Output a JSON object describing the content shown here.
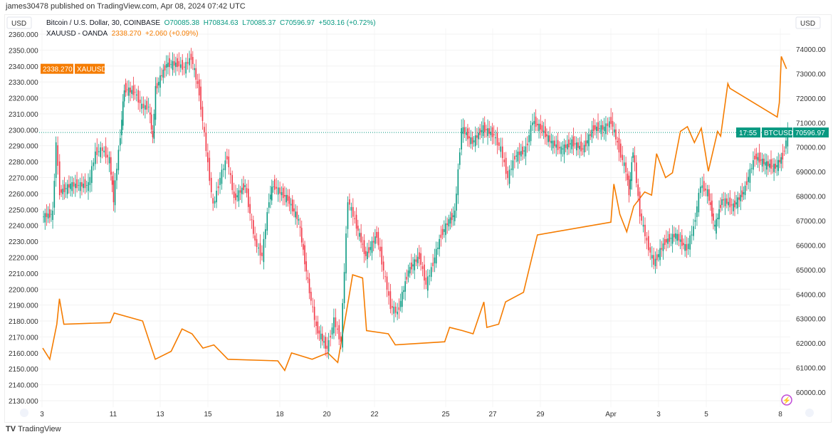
{
  "header": {
    "published": "james30478 published on TradingView.com, Apr 08, 2024 07:42 UTC"
  },
  "legend": {
    "btc_name": "Bitcoin / U.S. Dollar, 30, COINBASE",
    "btc_o": "O70085.38",
    "btc_h": "H70834.63",
    "btc_l": "L70085.37",
    "btc_c": "C70596.97",
    "btc_chg": "+503.16 (+0.72%)",
    "gold_name": "XAUUSD - OANDA",
    "gold_price": "2338.270",
    "gold_chg": "+2.060 (+0.09%)"
  },
  "footer": {
    "logo": "TradingView"
  },
  "colors": {
    "gold": "#f57c00",
    "up": "#089981",
    "down": "#f23645"
  },
  "chart_data": {
    "type": "line",
    "left_axis": {
      "unit": "USD",
      "range": [
        2130,
        2360
      ],
      "ticks": [
        2130,
        2140,
        2150,
        2160,
        2170,
        2180,
        2190,
        2200,
        2210,
        2220,
        2230,
        2240,
        2250,
        2260,
        2270,
        2280,
        2290,
        2300,
        2310,
        2320,
        2330,
        2340,
        2350,
        2360
      ]
    },
    "right_axis": {
      "unit": "USD",
      "range": [
        60000,
        74000
      ],
      "ticks": [
        "60000.00",
        "61000.00",
        "62000.00",
        "63000.00",
        "64000.00",
        "65000.00",
        "66000.00",
        "67000.00",
        "68000.00",
        "69000.00",
        "70000.00",
        "71000.00",
        "72000.00",
        "73000.00",
        "74000.00"
      ]
    },
    "x_ticks": [
      {
        "label": "3",
        "date": "2024-03-03T00:00"
      },
      {
        "label": "11",
        "date": "2024-03-11T00:00"
      },
      {
        "label": "13",
        "date": "2024-03-13T00:00"
      },
      {
        "label": "15",
        "date": "2024-03-15T00:00"
      },
      {
        "label": "18",
        "date": "2024-03-18T00:00"
      },
      {
        "label": "20",
        "date": "2024-03-20T00:00"
      },
      {
        "label": "22",
        "date": "2024-03-22T00:00"
      },
      {
        "label": "25",
        "date": "2024-03-25T00:00"
      },
      {
        "label": "27",
        "date": "2024-03-27T00:00"
      },
      {
        "label": "29",
        "date": "2024-03-29T00:00"
      },
      {
        "label": "Apr",
        "date": "2024-04-01T00:00"
      },
      {
        "label": "3",
        "date": "2024-04-03T00:00"
      },
      {
        "label": "5",
        "date": "2024-04-05T00:00"
      },
      {
        "label": "8",
        "date": "2024-04-08T00:00"
      }
    ],
    "badges": {
      "gold_price": "2338.270",
      "gold_label": "XAUUSD",
      "btc_label": "BTCUSD",
      "btc_price": "70596.97",
      "btc_countdown": "17:55",
      "btc_last": 70596.97,
      "gold_last": 2338.27
    },
    "series": [
      {
        "name": "XAUUSD",
        "axis": "left",
        "style": "line",
        "points": [
          [
            "2024-03-03T02:00",
            2163
          ],
          [
            "2024-03-03T21:00",
            2156
          ],
          [
            "2024-03-04T16:00",
            2178
          ],
          [
            "2024-03-04T23:00",
            2194
          ],
          [
            "2024-03-05T11:00",
            2178
          ],
          [
            "2024-03-10T16:00",
            2179
          ],
          [
            "2024-03-11T01:00",
            2185
          ],
          [
            "2024-03-12T06:00",
            2180
          ],
          [
            "2024-03-12T13:00",
            2167
          ],
          [
            "2024-03-12T19:00",
            2156
          ],
          [
            "2024-03-13T11:00",
            2161
          ],
          [
            "2024-03-13T22:00",
            2175
          ],
          [
            "2024-03-14T08:00",
            2172
          ],
          [
            "2024-03-14T19:00",
            2163
          ],
          [
            "2024-03-15T06:00",
            2165
          ],
          [
            "2024-03-15T20:00",
            2156
          ],
          [
            "2024-03-17T22:00",
            2155
          ],
          [
            "2024-03-18T05:00",
            2149
          ],
          [
            "2024-03-18T12:00",
            2160
          ],
          [
            "2024-03-19T09:00",
            2156
          ],
          [
            "2024-03-20T01:00",
            2160
          ],
          [
            "2024-03-20T11:00",
            2154
          ],
          [
            "2024-03-20T22:00",
            2194
          ],
          [
            "2024-03-21T02:00",
            2209
          ],
          [
            "2024-03-21T12:00",
            2207
          ],
          [
            "2024-03-21T16:00",
            2174
          ],
          [
            "2024-03-22T14:00",
            2172
          ],
          [
            "2024-03-22T21:00",
            2165
          ],
          [
            "2024-03-24T23:00",
            2167
          ],
          [
            "2024-03-25T04:00",
            2176
          ],
          [
            "2024-03-25T17:00",
            2174
          ],
          [
            "2024-03-26T04:00",
            2172
          ],
          [
            "2024-03-26T15:00",
            2192
          ],
          [
            "2024-03-26T18:00",
            2176
          ],
          [
            "2024-03-27T06:00",
            2178
          ],
          [
            "2024-03-27T13:00",
            2192
          ],
          [
            "2024-03-28T07:00",
            2198
          ],
          [
            "2024-03-28T14:00",
            2216
          ],
          [
            "2024-03-28T21:00",
            2234
          ],
          [
            "2024-04-01T00:00",
            2242
          ],
          [
            "2024-04-01T03:00",
            2266
          ],
          [
            "2024-04-01T09:00",
            2247
          ],
          [
            "2024-04-01T16:00",
            2236
          ],
          [
            "2024-04-01T23:00",
            2252
          ],
          [
            "2024-04-02T10:00",
            2261
          ],
          [
            "2024-04-02T17:00",
            2259
          ],
          [
            "2024-04-02T22:00",
            2285
          ],
          [
            "2024-04-03T07:00",
            2270
          ],
          [
            "2024-04-03T14:00",
            2273
          ],
          [
            "2024-04-03T22:00",
            2299
          ],
          [
            "2024-04-04T05:00",
            2302
          ],
          [
            "2024-04-04T12:00",
            2292
          ],
          [
            "2024-04-04T19:00",
            2301
          ],
          [
            "2024-04-05T02:00",
            2274
          ],
          [
            "2024-04-05T11:00",
            2299
          ],
          [
            "2024-04-05T14:00",
            2296
          ],
          [
            "2024-04-05T21:00",
            2329
          ],
          [
            "2024-04-05T23:00",
            2326
          ],
          [
            "2024-04-07T21:00",
            2308
          ],
          [
            "2024-04-07T23:00",
            2317
          ],
          [
            "2024-04-08T01:00",
            2346
          ],
          [
            "2024-04-08T06:00",
            2338.27
          ]
        ]
      },
      {
        "name": "BTCUSD",
        "axis": "right",
        "style": "candles",
        "points": [
          [
            "2024-03-03T02:00",
            67145
          ],
          [
            "2024-03-04T07:00",
            67290
          ],
          [
            "2024-03-04T16:00",
            70195
          ],
          [
            "2024-03-05T02:00",
            68160
          ],
          [
            "2024-03-06T07:00",
            68450
          ],
          [
            "2024-03-08T07:00",
            68450
          ],
          [
            "2024-03-09T02:00",
            69760
          ],
          [
            "2024-03-09T21:00",
            69905
          ],
          [
            "2024-03-10T16:00",
            69470
          ],
          [
            "2024-03-11T01:00",
            67870
          ],
          [
            "2024-03-11T08:00",
            70485
          ],
          [
            "2024-03-11T12:00",
            72375
          ],
          [
            "2024-03-11T23:00",
            72230
          ],
          [
            "2024-03-12T06:00",
            71650
          ],
          [
            "2024-03-12T13:00",
            71650
          ],
          [
            "2024-03-12T17:00",
            70340
          ],
          [
            "2024-03-12T20:00",
            72375
          ],
          [
            "2024-03-13T07:00",
            73390
          ],
          [
            "2024-03-13T18:00",
            73390
          ],
          [
            "2024-03-14T01:00",
            73245
          ],
          [
            "2024-03-14T08:00",
            73680
          ],
          [
            "2024-03-14T16:00",
            72230
          ],
          [
            "2024-03-14T23:00",
            69905
          ],
          [
            "2024-03-15T06:00",
            67580
          ],
          [
            "2024-03-15T13:00",
            68740
          ],
          [
            "2024-03-15T20:00",
            69615
          ],
          [
            "2024-03-16T03:00",
            67870
          ],
          [
            "2024-03-16T14:00",
            68450
          ],
          [
            "2024-03-17T00:00",
            66130
          ],
          [
            "2024-03-17T07:00",
            65550
          ],
          [
            "2024-03-17T14:00",
            67870
          ],
          [
            "2024-03-17T18:00",
            68450
          ],
          [
            "2024-03-18T01:00",
            68160
          ],
          [
            "2024-03-18T09:00",
            67870
          ],
          [
            "2024-03-18T20:00",
            67000
          ],
          [
            "2024-03-19T07:00",
            64095
          ],
          [
            "2024-03-19T14:00",
            62640
          ],
          [
            "2024-03-20T01:00",
            61770
          ],
          [
            "2024-03-20T08:00",
            62930
          ],
          [
            "2024-03-20T15:00",
            62060
          ],
          [
            "2024-03-20T22:00",
            67870
          ],
          [
            "2024-03-21T05:00",
            67000
          ],
          [
            "2024-03-21T16:00",
            65550
          ],
          [
            "2024-03-22T03:00",
            66420
          ],
          [
            "2024-03-22T10:00",
            64965
          ],
          [
            "2024-03-22T17:00",
            63515
          ],
          [
            "2024-03-23T00:00",
            63225
          ],
          [
            "2024-03-23T11:00",
            64965
          ],
          [
            "2024-03-23T22:00",
            65550
          ],
          [
            "2024-03-24T05:00",
            64385
          ],
          [
            "2024-03-24T12:00",
            65260
          ],
          [
            "2024-03-24T20:00",
            66420
          ],
          [
            "2024-03-25T04:00",
            67000
          ],
          [
            "2024-03-25T10:00",
            67290
          ],
          [
            "2024-03-25T17:00",
            70775
          ],
          [
            "2024-03-26T04:00",
            70195
          ],
          [
            "2024-03-26T15:00",
            70775
          ],
          [
            "2024-03-27T02:00",
            70485
          ],
          [
            "2024-03-27T09:00",
            69905
          ],
          [
            "2024-03-27T16:00",
            68740
          ],
          [
            "2024-03-27T23:00",
            69615
          ],
          [
            "2024-03-28T10:00",
            69905
          ],
          [
            "2024-03-28T17:00",
            71065
          ],
          [
            "2024-03-29T01:00",
            70775
          ],
          [
            "2024-03-29T12:00",
            70195
          ],
          [
            "2024-03-29T22:00",
            69905
          ],
          [
            "2024-03-30T09:00",
            70195
          ],
          [
            "2024-03-30T20:00",
            69905
          ],
          [
            "2024-03-31T07:00",
            70775
          ],
          [
            "2024-03-31T18:00",
            70775
          ],
          [
            "2024-04-01T01:00",
            71065
          ],
          [
            "2024-04-01T09:00",
            69905
          ],
          [
            "2024-04-01T16:00",
            69035
          ],
          [
            "2024-04-01T19:00",
            68160
          ],
          [
            "2024-04-01T23:00",
            69905
          ],
          [
            "2024-04-02T06:00",
            67290
          ],
          [
            "2024-04-02T13:00",
            66130
          ],
          [
            "2024-04-02T20:00",
            65260
          ],
          [
            "2024-04-03T07:00",
            66130
          ],
          [
            "2024-04-03T18:00",
            66420
          ],
          [
            "2024-04-04T05:00",
            65840
          ],
          [
            "2024-04-04T12:00",
            66710
          ],
          [
            "2024-04-04T19:00",
            68450
          ],
          [
            "2024-04-05T02:00",
            68160
          ],
          [
            "2024-04-05T09:00",
            66710
          ],
          [
            "2024-04-05T16:00",
            67870
          ],
          [
            "2024-04-06T03:00",
            67580
          ],
          [
            "2024-04-06T13:00",
            68160
          ],
          [
            "2024-04-07T00:00",
            69615
          ],
          [
            "2024-04-07T10:00",
            69325
          ],
          [
            "2024-04-07T20:00",
            69180
          ],
          [
            "2024-04-08T03:00",
            69615
          ],
          [
            "2024-04-08T08:00",
            70596.97
          ]
        ]
      }
    ]
  }
}
